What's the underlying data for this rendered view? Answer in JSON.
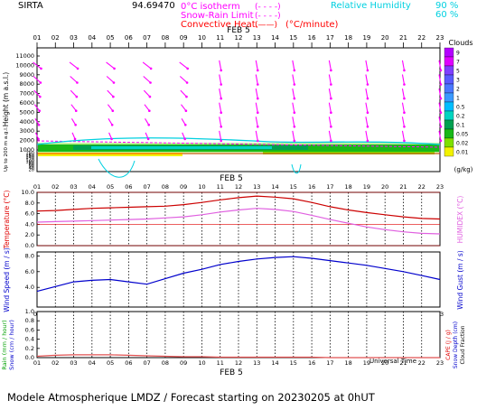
{
  "header": {
    "station": "SIRTA",
    "station_code": "94.69470",
    "legend_isotherm": "0°C isotherm",
    "legend_isotherm_key": "(- - - -)",
    "legend_snow_rain": "Snow-Rain Limit",
    "legend_snow_rain_key": "(- - - -)",
    "legend_conv": "Convective Heat.",
    "legend_conv_key": "(——)",
    "legend_conv_unit": "(°C/minute)",
    "rh_label": "Relative Humidity",
    "rh_90": "90 %",
    "rh_60": "60 %",
    "rh_90_key": "(——)",
    "rh_60_key": "(- - -)",
    "colors": {
      "isotherm": "#ff00ff",
      "snow": "#ff00ff",
      "conv": "#ff0000",
      "rh": "#00e5ee"
    }
  },
  "time_axis": {
    "ticks": [
      "01",
      "02",
      "03",
      "04",
      "05",
      "06",
      "07",
      "08",
      "09",
      "10",
      "11",
      "12",
      "13",
      "14",
      "15",
      "16",
      "17",
      "18",
      "19",
      "20",
      "21",
      "22",
      "23"
    ],
    "date_label": "FEB 5",
    "bottom_label": "Universal Time"
  },
  "footer": "Modele Atmospherique LMDZ / Forecast starting on 20230205 at 0hUT",
  "chart_data": [
    {
      "type": "heatmap",
      "name": "cloud-wind-profile",
      "ylabel": "Height (m a.s.l.)",
      "y2label": "Up to 200 m a.g.l.",
      "yticks_upper": [
        "11000",
        "10000",
        "9000",
        "8000",
        "7000",
        "6000",
        "5000",
        "4000",
        "3000",
        "2000",
        "1000"
      ],
      "yticks_lower": [
        "180",
        "160",
        "140",
        "120",
        "100",
        "80",
        "60",
        "40",
        "20"
      ],
      "clouds_legend": {
        "title": "Clouds",
        "unit": "(g/kg)",
        "levels": [
          "9",
          "7",
          "5",
          "3",
          "2",
          "1",
          "0.5",
          "0.2",
          "0.1",
          "0.05",
          "0.02",
          "0.01"
        ],
        "colors": [
          "#b400ff",
          "#e000ff",
          "#7f3fff",
          "#5a5aff",
          "#4a78ff",
          "#3a9aff",
          "#00bfff",
          "#00d5c0",
          "#00a050",
          "#18b818",
          "#7ee000",
          "#f2f200"
        ]
      },
      "wind_x": [
        1,
        3,
        5,
        7,
        9,
        11,
        13,
        15,
        17,
        19,
        21,
        23
      ],
      "wind_y": [
        10000,
        8500,
        7000,
        5500,
        4000,
        2500
      ]
    },
    {
      "type": "line",
      "name": "temperature",
      "ylabel": "Temperature (°C)",
      "y2label": "HUMIDEX (°C)",
      "yticks": [
        "10.0",
        "8.0",
        "6.0",
        "4.0",
        "2.0",
        "0.0"
      ],
      "ylim": [
        0,
        10
      ],
      "x": [
        1,
        2,
        3,
        4,
        5,
        6,
        7,
        8,
        9,
        10,
        11,
        12,
        13,
        14,
        15,
        16,
        17,
        18,
        19,
        20,
        21,
        22,
        23
      ],
      "series": [
        {
          "values": [
            6.5,
            6.6,
            6.8,
            7.0,
            7.1,
            7.2,
            7.3,
            7.4,
            7.7,
            8.1,
            8.6,
            9.0,
            9.3,
            9.1,
            8.8,
            8.1,
            7.3,
            6.7,
            6.2,
            5.8,
            5.4,
            5.1,
            5.0
          ],
          "color": "#cc0000"
        },
        {
          "values": [
            4.4,
            4.5,
            4.6,
            4.7,
            4.8,
            4.9,
            5.0,
            5.2,
            5.4,
            5.8,
            6.3,
            6.7,
            7.0,
            6.8,
            6.4,
            5.7,
            4.9,
            4.2,
            3.5,
            3.0,
            2.6,
            2.3,
            2.2
          ],
          "color": "#e060e0"
        }
      ]
    },
    {
      "type": "line",
      "name": "wind-speed",
      "ylabel": "Wind Speed (m / s)",
      "y2label": "Wind Gust (m / s)",
      "yticks": [
        "8.0",
        "6.0",
        "4.0"
      ],
      "ylim": [
        1.5,
        8.5
      ],
      "x": [
        1,
        2,
        3,
        4,
        5,
        6,
        7,
        8,
        9,
        10,
        11,
        12,
        13,
        14,
        15,
        16,
        17,
        18,
        19,
        20,
        21,
        22,
        23
      ],
      "series": [
        {
          "values": [
            3.5,
            4.1,
            4.7,
            4.9,
            5.0,
            4.7,
            4.4,
            5.1,
            5.8,
            6.3,
            6.9,
            7.3,
            7.6,
            7.8,
            7.9,
            7.7,
            7.4,
            7.1,
            6.8,
            6.4,
            6.0,
            5.5,
            5.0
          ],
          "color": "#0000cc"
        }
      ]
    },
    {
      "type": "line",
      "name": "precipitation",
      "ylabel": "Rain (mm / hour)",
      "y2label": "Snow (cm / hour)",
      "right_labels": [
        "CAPE (J / g)",
        "Snow Depth (cm)",
        "Cloud Fraction"
      ],
      "yticks": [
        "1.0",
        "0.8",
        "0.6",
        "0.4",
        "0.2",
        "0.0"
      ],
      "ylim": [
        0,
        1
      ],
      "x": [
        1,
        2,
        3,
        4,
        5,
        6,
        7,
        8,
        9,
        10,
        11,
        12,
        13,
        14,
        15,
        16,
        17,
        18,
        19,
        20,
        21,
        22,
        23
      ],
      "series": [
        {
          "values": [
            0.03,
            0.05,
            0.06,
            0.06,
            0.06,
            0.05,
            0.04,
            0.03,
            0.02,
            0.02,
            0.01,
            0.01,
            0.01,
            0.01,
            0.01,
            0.01,
            0.0,
            0.0,
            0.0,
            0.0,
            0.0,
            0.0,
            0.0
          ],
          "color": "#e05050"
        }
      ]
    }
  ]
}
